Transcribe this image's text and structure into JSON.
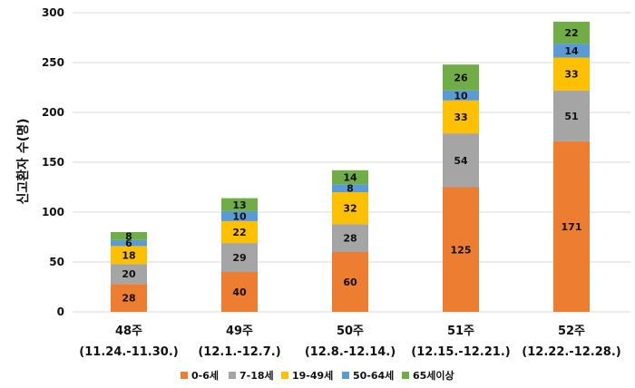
{
  "chart_data": {
    "type": "bar",
    "stacked": true,
    "categories": [
      "48주",
      "49주",
      "50주",
      "51주",
      "52주"
    ],
    "category_sublabels": [
      "(11.24.-11.30.)",
      "(12.1.-12.7.)",
      "(12.8.-12.14.)",
      "(12.15.-12.21.)",
      "(12.22.-12.28.)"
    ],
    "series": [
      {
        "name": "0-6세",
        "color": "#ED7D31",
        "values": [
          28,
          40,
          60,
          125,
          171
        ]
      },
      {
        "name": "7-18세",
        "color": "#A5A5A5",
        "values": [
          20,
          29,
          28,
          54,
          51
        ]
      },
      {
        "name": "19-49세",
        "color": "#FFC000",
        "values": [
          18,
          22,
          32,
          33,
          33
        ]
      },
      {
        "name": "50-64세",
        "color": "#5B9BD5",
        "values": [
          6,
          10,
          8,
          10,
          14
        ]
      },
      {
        "name": "65세이상",
        "color": "#70AD47",
        "values": [
          8,
          13,
          14,
          26,
          22
        ]
      }
    ],
    "xlabel": "",
    "ylabel": "신고환자 수(명)",
    "ylim": [
      0,
      300
    ],
    "yticks": [
      0,
      50,
      100,
      150,
      200,
      250,
      300
    ],
    "grid": true,
    "legend_position": "bottom",
    "data_labels": true
  }
}
